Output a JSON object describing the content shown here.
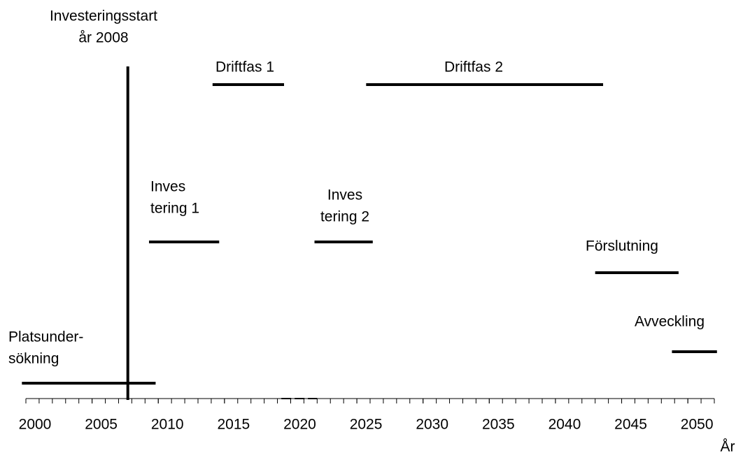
{
  "chart_data": {
    "type": "timeline",
    "x_label": "År",
    "xlim": [
      2000,
      2052
    ],
    "xticks": [
      2000,
      2005,
      2010,
      2015,
      2020,
      2025,
      2030,
      2035,
      2040,
      2045,
      2050
    ],
    "minor_tick_step": 1,
    "color": "#000000",
    "milestone": {
      "label": [
        "Investeringsstart",
        "år 2008"
      ],
      "value": 2007.7
    },
    "tasks": [
      {
        "label": [
          "Platsunder-",
          "sökning"
        ],
        "start": 1999.7,
        "end": 2009.8
      },
      {
        "label": [
          "Inves",
          "tering 1"
        ],
        "start": 2009.3,
        "end": 2014.6
      },
      {
        "label": [
          "Driftfas 1"
        ],
        "start": 2014.1,
        "end": 2019.5
      },
      {
        "label": [
          "Inves",
          "tering 2"
        ],
        "start": 2021.8,
        "end": 2026.2
      },
      {
        "label": [
          "Driftfas 2"
        ],
        "start": 2025.7,
        "end": 2043.6
      },
      {
        "label": [
          "Förslutning"
        ],
        "start": 2043.0,
        "end": 2049.3
      },
      {
        "label": [
          "Avveckling"
        ],
        "start": 2048.8,
        "end": 2052.2
      }
    ],
    "dashed": [
      {
        "start": 2019.3,
        "end": 2022.0
      }
    ]
  }
}
